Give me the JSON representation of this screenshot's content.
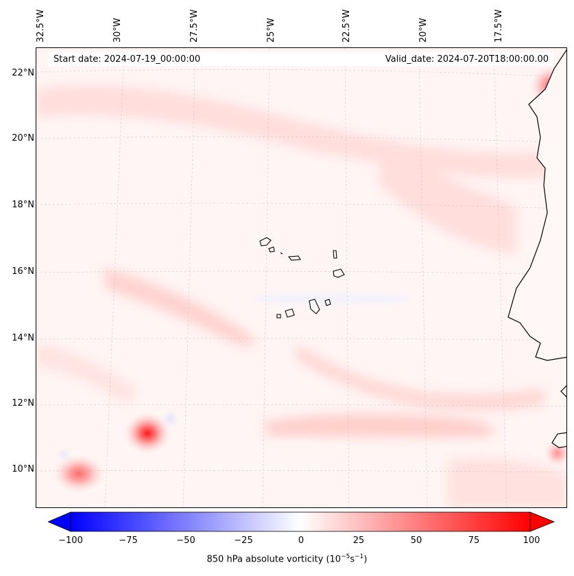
{
  "header": {
    "start_date": "Start date: 2024-07-19_00:00:00",
    "valid_date": "Valid_date: 2024-07-20T18:00:00.00"
  },
  "axes": {
    "lon_labels": [
      "32.5°W",
      "30°W",
      "27.5°W",
      "25°W",
      "22.5°W",
      "20°W",
      "17.5°W"
    ],
    "lat_labels": [
      "22°N",
      "20°N",
      "18°N",
      "16°N",
      "14°N",
      "12°N",
      "10°N"
    ]
  },
  "colorbar": {
    "label": "850 hPa absolute vorticity (10",
    "label_exp1": "−5",
    "label_mid": "s",
    "label_exp2": "−1",
    "label_end": ")",
    "ticks": [
      "−100",
      "−75",
      "−50",
      "−25",
      "0",
      "25",
      "50",
      "75",
      "100"
    ],
    "min": -100,
    "max": 100,
    "extend": "both"
  },
  "colors": {
    "negative": "#0000ff",
    "neutral": "#ffffff",
    "positive": "#ff0000",
    "coastline": "#000000"
  }
}
